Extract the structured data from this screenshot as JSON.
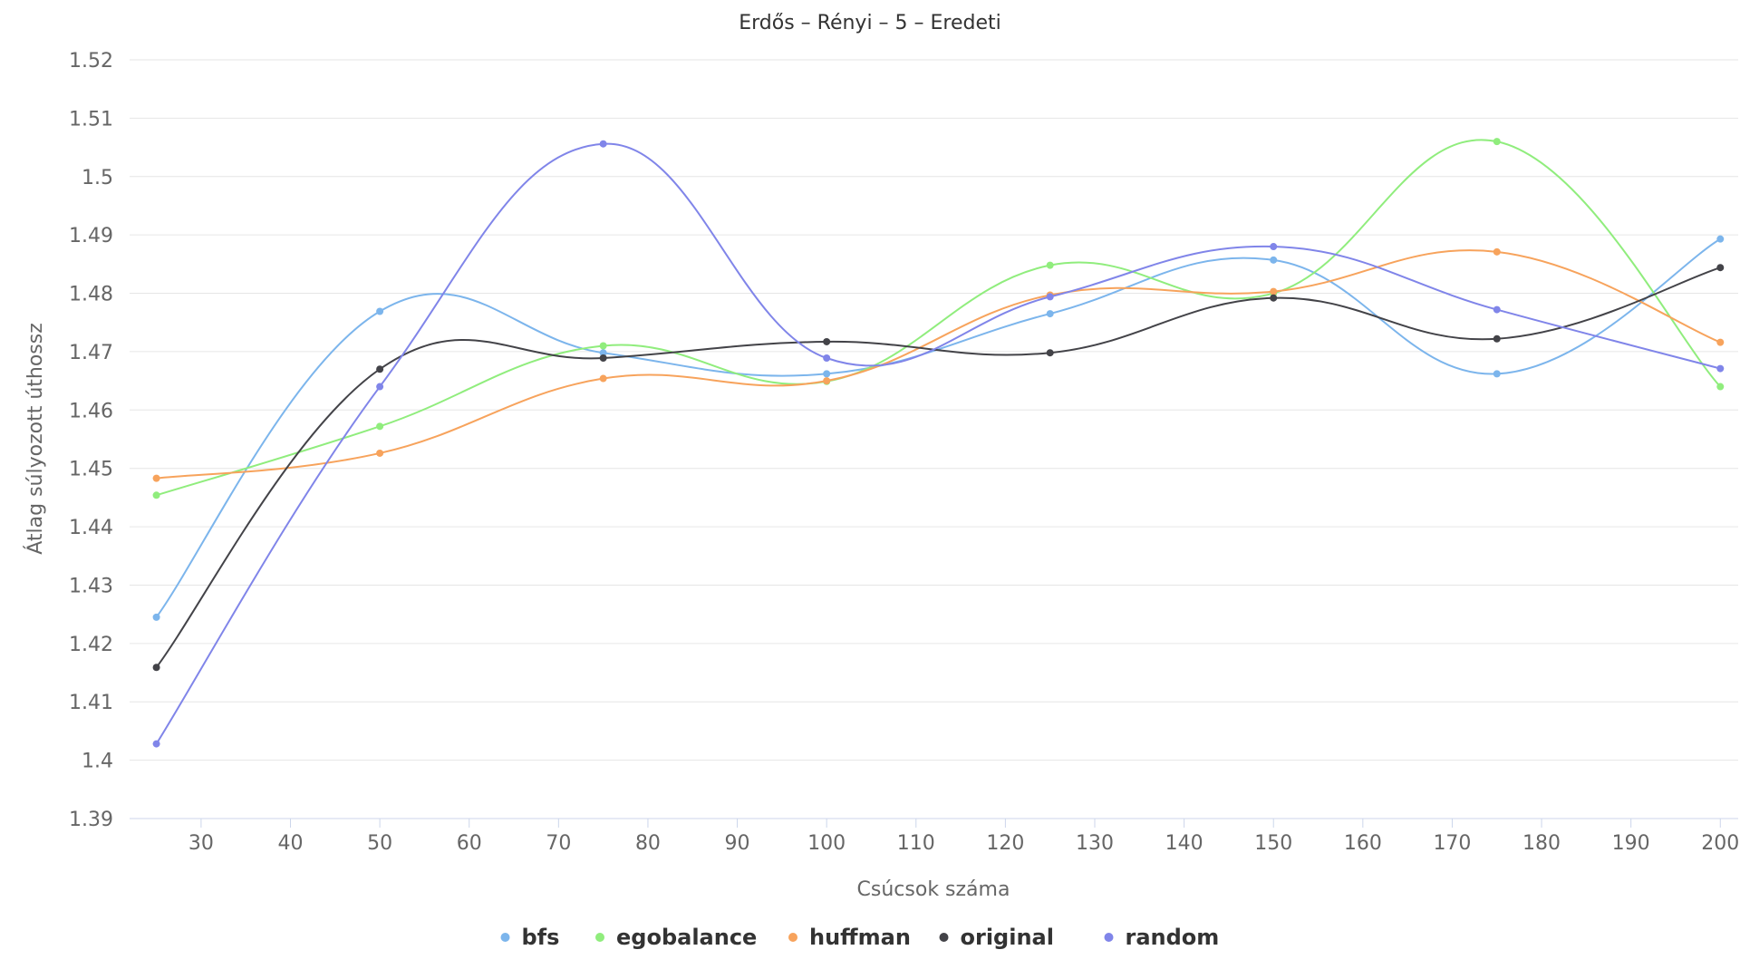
{
  "chart_data": {
    "type": "line",
    "title": "Erdős – Rényi – 5 – Eredeti",
    "xlabel": "Csúcsok száma",
    "ylabel": "Átlag súlyozott úthossz",
    "x": [
      25,
      50,
      75,
      100,
      125,
      150,
      175,
      200
    ],
    "xlim": [
      22,
      202
    ],
    "ylim": [
      1.39,
      1.52
    ],
    "x_ticks": [
      "30",
      "40",
      "50",
      "60",
      "70",
      "80",
      "90",
      "100",
      "110",
      "120",
      "130",
      "140",
      "150",
      "160",
      "170",
      "180",
      "190",
      "200"
    ],
    "y_ticks": [
      "1.39",
      "1.4",
      "1.41",
      "1.42",
      "1.43",
      "1.44",
      "1.45",
      "1.46",
      "1.47",
      "1.48",
      "1.49",
      "1.5",
      "1.51",
      "1.52"
    ],
    "grid": true,
    "legend_position": "bottom-center",
    "series": [
      {
        "name": "bfs",
        "color": "#7cb5ec",
        "values": [
          1.4245,
          1.4769,
          1.4698,
          1.4662,
          1.4765,
          1.4857,
          1.4662,
          1.4893
        ]
      },
      {
        "name": "egobalance",
        "color": "#90ed7d",
        "values": [
          1.4454,
          1.4572,
          1.471,
          1.4649,
          1.4848,
          1.48,
          1.506,
          1.464
        ]
      },
      {
        "name": "huffman",
        "color": "#f7a35c",
        "values": [
          1.4483,
          1.4526,
          1.4654,
          1.465,
          1.4797,
          1.4803,
          1.4871,
          1.4716
        ]
      },
      {
        "name": "original",
        "color": "#434348",
        "values": [
          1.4159,
          1.467,
          1.4689,
          1.4717,
          1.4698,
          1.4792,
          1.4722,
          1.4844
        ]
      },
      {
        "name": "random",
        "color": "#8085e9",
        "values": [
          1.4028,
          1.464,
          1.5056,
          1.4689,
          1.4794,
          1.488,
          1.4772,
          1.4671
        ]
      }
    ]
  }
}
